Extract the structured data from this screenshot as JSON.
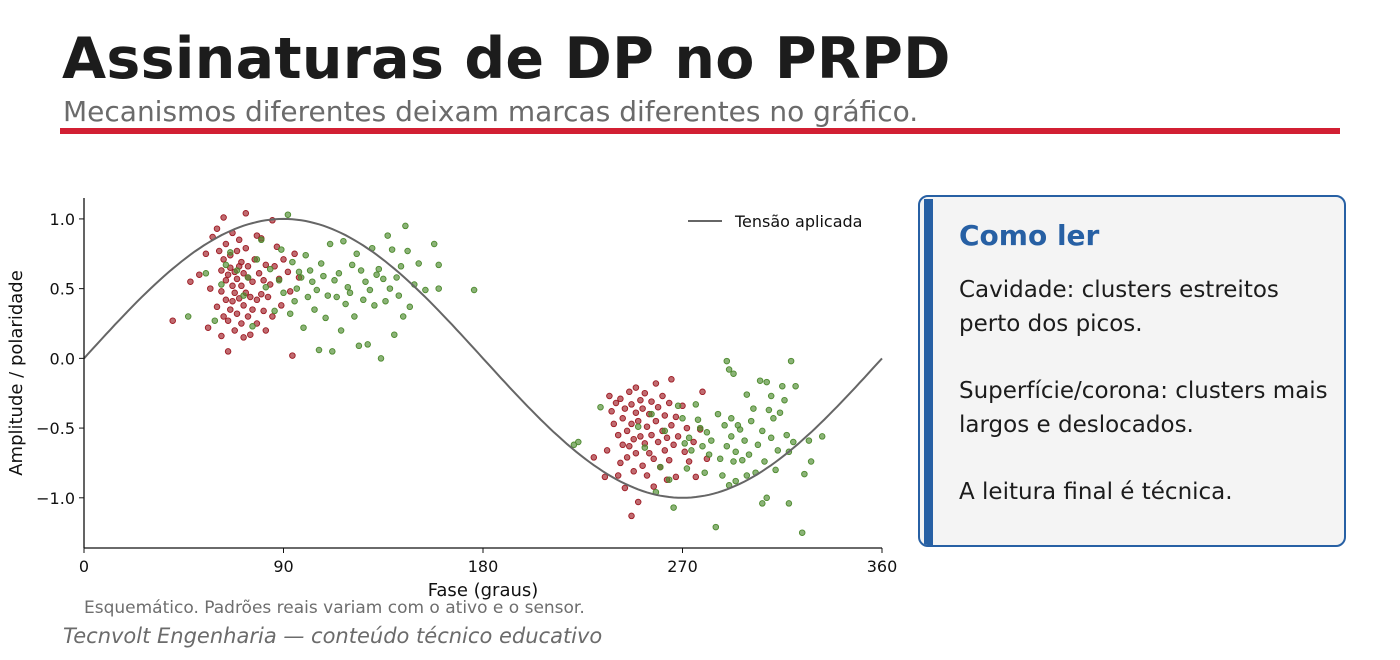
{
  "header": {
    "title": "Assinaturas de DP no PRPD",
    "subtitle": "Mecanismos diferentes deixam marcas diferentes no gráfico."
  },
  "colors": {
    "accent_rule": "#d21f33",
    "box_blue": "#2760a4",
    "cavity_points": "#9e1b24",
    "surface_points": "#4d8a2e",
    "voltage_line": "#666666"
  },
  "chart_data": {
    "type": "scatter",
    "xlabel": "Fase (graus)",
    "ylabel": "Amplitude / polaridade",
    "xlim": [
      0,
      360
    ],
    "ylim": [
      -1.36,
      1.15
    ],
    "xticks": [
      0,
      90,
      180,
      270,
      360
    ],
    "yticks": [
      1.0,
      0.5,
      0.0,
      -0.5,
      -1.0
    ],
    "ytick_labels": [
      "1.0",
      "0.5",
      "0.0",
      "−0.5",
      "−1.0"
    ],
    "legend": {
      "position": "top-right",
      "entries": [
        "Tensão aplicada"
      ]
    },
    "line_series": {
      "name": "Tensão aplicada",
      "function": "sin",
      "color": "#666666"
    },
    "grid": false,
    "scatter_groups": [
      {
        "color": "#9e1b24",
        "points": [
          [
            40,
            0.27
          ],
          [
            48,
            0.55
          ],
          [
            52,
            0.6
          ],
          [
            55,
            0.75
          ],
          [
            56,
            0.22
          ],
          [
            57,
            0.5
          ],
          [
            58,
            0.87
          ],
          [
            60,
            0.37
          ],
          [
            60,
            0.93
          ],
          [
            61,
            0.77
          ],
          [
            62,
            0.48
          ],
          [
            62,
            0.63
          ],
          [
            62,
            0.16
          ],
          [
            63,
            0.71
          ],
          [
            63,
            0.3
          ],
          [
            63,
            1.01
          ],
          [
            64,
            0.42
          ],
          [
            64,
            0.56
          ],
          [
            64,
            0.82
          ],
          [
            65,
            0.6
          ],
          [
            65,
            0.27
          ],
          [
            65,
            0.05
          ],
          [
            66,
            0.74
          ],
          [
            66,
            0.35
          ],
          [
            66,
            0.65
          ],
          [
            67,
            0.52
          ],
          [
            67,
            0.9
          ],
          [
            67,
            0.41
          ],
          [
            68,
            0.62
          ],
          [
            68,
            0.2
          ],
          [
            68,
            0.47
          ],
          [
            69,
            0.77
          ],
          [
            69,
            0.32
          ],
          [
            69,
            0.57
          ],
          [
            70,
            0.66
          ],
          [
            70,
            0.43
          ],
          [
            70,
            0.85
          ],
          [
            71,
            0.25
          ],
          [
            71,
            0.52
          ],
          [
            71,
            0.69
          ],
          [
            72,
            0.38
          ],
          [
            72,
            0.61
          ],
          [
            72,
            0.15
          ],
          [
            73,
            0.47
          ],
          [
            73,
            1.04
          ],
          [
            73,
            0.79
          ],
          [
            74,
            0.58
          ],
          [
            74,
            0.3
          ],
          [
            74,
            0.66
          ],
          [
            75,
            0.44
          ],
          [
            75,
            0.17
          ],
          [
            76,
            0.55
          ],
          [
            76,
            0.35
          ],
          [
            77,
            0.71
          ],
          [
            78,
            0.88
          ],
          [
            78,
            0.42
          ],
          [
            78,
            0.25
          ],
          [
            79,
            0.61
          ],
          [
            80,
            0.46
          ],
          [
            80,
            0.86
          ],
          [
            81,
            0.34
          ],
          [
            81,
            0.56
          ],
          [
            82,
            0.67
          ],
          [
            82,
            0.2
          ],
          [
            83,
            0.44
          ],
          [
            84,
            0.53
          ],
          [
            85,
            0.99
          ],
          [
            85,
            0.3
          ],
          [
            86,
            0.66
          ],
          [
            87,
            0.8
          ],
          [
            88,
            0.57
          ],
          [
            89,
            0.38
          ],
          [
            90,
            0.71
          ],
          [
            92,
            0.62
          ],
          [
            93,
            0.48
          ],
          [
            94,
            0.02
          ],
          [
            95,
            0.75
          ],
          [
            97,
            0.58
          ],
          [
            230,
            -0.71
          ],
          [
            235,
            -0.85
          ],
          [
            236,
            -0.66
          ],
          [
            237,
            -0.27
          ],
          [
            238,
            -0.38
          ],
          [
            239,
            -0.47
          ],
          [
            240,
            -0.32
          ],
          [
            241,
            -0.55
          ],
          [
            241,
            -0.84
          ],
          [
            242,
            -0.29
          ],
          [
            242,
            -0.75
          ],
          [
            243,
            -0.62
          ],
          [
            243,
            -0.43
          ],
          [
            244,
            -0.93
          ],
          [
            244,
            -0.36
          ],
          [
            245,
            -0.52
          ],
          [
            245,
            -0.71
          ],
          [
            246,
            -0.24
          ],
          [
            246,
            -0.63
          ],
          [
            247,
            -1.13
          ],
          [
            247,
            -0.33
          ],
          [
            247,
            -0.47
          ],
          [
            248,
            -0.81
          ],
          [
            248,
            -0.58
          ],
          [
            249,
            -0.21
          ],
          [
            249,
            -0.39
          ],
          [
            249,
            -0.68
          ],
          [
            250,
            -0.45
          ],
          [
            250,
            -1.03
          ],
          [
            251,
            -0.3
          ],
          [
            251,
            -0.56
          ],
          [
            252,
            -0.77
          ],
          [
            252,
            -0.36
          ],
          [
            253,
            -0.61
          ],
          [
            253,
            -0.25
          ],
          [
            254,
            -0.49
          ],
          [
            254,
            -0.84
          ],
          [
            255,
            -0.4
          ],
          [
            255,
            -0.68
          ],
          [
            256,
            -0.31
          ],
          [
            256,
            -0.55
          ],
          [
            257,
            -0.92
          ],
          [
            257,
            -0.72
          ],
          [
            258,
            -0.18
          ],
          [
            258,
            -0.45
          ],
          [
            259,
            -0.6
          ],
          [
            259,
            -0.35
          ],
          [
            260,
            -0.78
          ],
          [
            261,
            -0.27
          ],
          [
            261,
            -0.52
          ],
          [
            262,
            -0.66
          ],
          [
            262,
            -0.41
          ],
          [
            263,
            -0.87
          ],
          [
            263,
            -0.57
          ],
          [
            264,
            -0.32
          ],
          [
            264,
            -0.73
          ],
          [
            265,
            -0.15
          ],
          [
            265,
            -0.48
          ],
          [
            266,
            -0.62
          ],
          [
            267,
            -0.42
          ],
          [
            267,
            -0.85
          ],
          [
            268,
            -0.56
          ],
          [
            270,
            -0.34
          ],
          [
            271,
            -0.67
          ],
          [
            272,
            -0.5
          ],
          [
            273,
            -0.74
          ],
          [
            275,
            -0.6
          ],
          [
            276,
            -0.85
          ],
          [
            278,
            -0.51
          ],
          [
            279,
            -0.24
          ],
          [
            281,
            -0.72
          ]
        ]
      },
      {
        "color": "#4d8a2e",
        "points": [
          [
            47,
            0.3
          ],
          [
            55,
            0.61
          ],
          [
            59,
            0.27
          ],
          [
            62,
            0.53
          ],
          [
            64,
            0.67
          ],
          [
            66,
            0.76
          ],
          [
            69,
            0.63
          ],
          [
            72,
            0.45
          ],
          [
            74,
            0.58
          ],
          [
            76,
            0.23
          ],
          [
            78,
            0.71
          ],
          [
            80,
            0.85
          ],
          [
            82,
            0.51
          ],
          [
            84,
            0.64
          ],
          [
            86,
            0.34
          ],
          [
            88,
            0.56
          ],
          [
            89,
            0.78
          ],
          [
            90,
            0.47
          ],
          [
            92,
            1.03
          ],
          [
            93,
            0.32
          ],
          [
            94,
            0.69
          ],
          [
            95,
            0.41
          ],
          [
            96,
            0.5
          ],
          [
            97,
            0.62
          ],
          [
            98,
            0.58
          ],
          [
            99,
            0.22
          ],
          [
            100,
            0.74
          ],
          [
            101,
            0.44
          ],
          [
            102,
            0.63
          ],
          [
            103,
            0.55
          ],
          [
            104,
            0.35
          ],
          [
            105,
            0.49
          ],
          [
            106,
            0.06
          ],
          [
            107,
            0.68
          ],
          [
            108,
            0.59
          ],
          [
            109,
            0.29
          ],
          [
            110,
            0.45
          ],
          [
            111,
            0.82
          ],
          [
            112,
            0.05
          ],
          [
            113,
            0.56
          ],
          [
            114,
            0.44
          ],
          [
            115,
            0.61
          ],
          [
            116,
            0.2
          ],
          [
            117,
            0.84
          ],
          [
            118,
            0.39
          ],
          [
            119,
            0.51
          ],
          [
            120,
            0.47
          ],
          [
            121,
            0.67
          ],
          [
            122,
            0.3
          ],
          [
            123,
            0.75
          ],
          [
            124,
            0.09
          ],
          [
            125,
            0.63
          ],
          [
            126,
            0.42
          ],
          [
            127,
            0.55
          ],
          [
            128,
            0.1
          ],
          [
            129,
            0.49
          ],
          [
            130,
            0.79
          ],
          [
            131,
            0.38
          ],
          [
            132,
            0.6
          ],
          [
            133,
            0.64
          ],
          [
            134,
            0.0
          ],
          [
            135,
            0.57
          ],
          [
            136,
            0.41
          ],
          [
            137,
            0.88
          ],
          [
            138,
            0.5
          ],
          [
            139,
            0.78
          ],
          [
            140,
            0.17
          ],
          [
            141,
            0.58
          ],
          [
            142,
            0.45
          ],
          [
            143,
            0.66
          ],
          [
            144,
            0.3
          ],
          [
            145,
            0.95
          ],
          [
            146,
            0.77
          ],
          [
            147,
            0.37
          ],
          [
            149,
            0.53
          ],
          [
            151,
            0.68
          ],
          [
            154,
            0.49
          ],
          [
            158,
            0.82
          ],
          [
            160,
            0.67
          ],
          [
            160,
            0.5
          ],
          [
            176,
            0.49
          ],
          [
            221,
            -0.62
          ],
          [
            223,
            -0.6
          ],
          [
            233,
            -0.35
          ],
          [
            250,
            -0.49
          ],
          [
            253,
            -0.64
          ],
          [
            256,
            -0.4
          ],
          [
            258,
            -0.96
          ],
          [
            260,
            -0.78
          ],
          [
            262,
            -0.52
          ],
          [
            264,
            -0.87
          ],
          [
            266,
            -1.07
          ],
          [
            268,
            -0.34
          ],
          [
            270,
            -0.43
          ],
          [
            271,
            -0.61
          ],
          [
            272,
            -0.79
          ],
          [
            273,
            -0.57
          ],
          [
            274,
            -0.66
          ],
          [
            276,
            -0.33
          ],
          [
            277,
            -0.44
          ],
          [
            278,
            -0.5
          ],
          [
            279,
            -0.63
          ],
          [
            280,
            -0.82
          ],
          [
            281,
            -0.53
          ],
          [
            282,
            -0.69
          ],
          [
            283,
            -0.59
          ],
          [
            285,
            -1.21
          ],
          [
            286,
            -0.4
          ],
          [
            287,
            -0.72
          ],
          [
            288,
            -0.84
          ],
          [
            289,
            -0.48
          ],
          [
            290,
            -0.02
          ],
          [
            290,
            -0.63
          ],
          [
            291,
            -0.08
          ],
          [
            291,
            -0.91
          ],
          [
            292,
            -0.56
          ],
          [
            292,
            -0.43
          ],
          [
            293,
            -0.74
          ],
          [
            293,
            -0.11
          ],
          [
            294,
            -0.88
          ],
          [
            294,
            -0.67
          ],
          [
            295,
            -0.48
          ],
          [
            296,
            -0.51
          ],
          [
            297,
            -0.73
          ],
          [
            298,
            -0.59
          ],
          [
            299,
            -0.84
          ],
          [
            299,
            -0.26
          ],
          [
            300,
            -0.69
          ],
          [
            301,
            -0.45
          ],
          [
            302,
            -0.36
          ],
          [
            303,
            -0.82
          ],
          [
            304,
            -0.62
          ],
          [
            305,
            -0.16
          ],
          [
            306,
            -1.04
          ],
          [
            306,
            -0.52
          ],
          [
            307,
            -0.74
          ],
          [
            308,
            -0.17
          ],
          [
            308,
            -1.0
          ],
          [
            309,
            -0.37
          ],
          [
            310,
            -0.27
          ],
          [
            310,
            -0.57
          ],
          [
            311,
            -0.43
          ],
          [
            312,
            -0.8
          ],
          [
            313,
            -0.66
          ],
          [
            314,
            -0.39
          ],
          [
            315,
            -0.2
          ],
          [
            316,
            -0.3
          ],
          [
            317,
            -0.55
          ],
          [
            318,
            -1.04
          ],
          [
            318,
            -0.67
          ],
          [
            319,
            -0.02
          ],
          [
            320,
            -0.6
          ],
          [
            321,
            -0.2
          ],
          [
            324,
            -1.25
          ],
          [
            325,
            -0.83
          ],
          [
            327,
            -0.59
          ],
          [
            328,
            -0.74
          ],
          [
            333,
            -0.56
          ]
        ]
      }
    ]
  },
  "info_box": {
    "heading": "Como ler",
    "lines": [
      "Cavidade: clusters estreitos perto dos picos.",
      "Superfície/corona: clusters mais largos e deslocados.",
      "A leitura final é técnica."
    ]
  },
  "caption": "Esquemático. Padrões reais variam com o ativo e o sensor.",
  "footer": "Tecnvolt Engenharia — conteúdo técnico educativo"
}
